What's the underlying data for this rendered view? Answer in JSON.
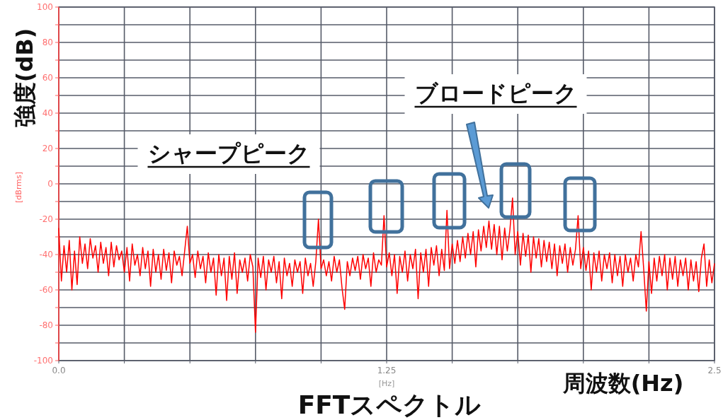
{
  "chart_data": {
    "type": "line",
    "title": "FFTスペクトル",
    "xlabel": "周波数(Hz)",
    "ylabel": "強度(dB)",
    "annotations": [
      "シャープピーク",
      "ブロードピーク",
      "[dBrms]",
      "[Hz]"
    ],
    "xlim": [
      0,
      2.5
    ],
    "ylim": [
      -100,
      100
    ],
    "xticks": [
      {
        "value": 0,
        "label": "0.0"
      },
      {
        "value": 0.25,
        "label": null
      },
      {
        "value": 0.5,
        "label": null
      },
      {
        "value": 0.75,
        "label": null
      },
      {
        "value": 1,
        "label": null
      },
      1.25,
      {
        "value": 1.5,
        "label": null
      },
      {
        "value": 1.75,
        "label": null
      },
      {
        "value": 2,
        "label": null
      },
      {
        "value": 2.25,
        "label": null
      },
      2.5
    ],
    "yticks": [
      -100,
      {
        "value": -90,
        "label": null
      },
      -80,
      {
        "value": -70,
        "label": null
      },
      -60,
      {
        "value": -50,
        "label": null
      },
      -40,
      {
        "value": -30,
        "label": null
      },
      -20,
      {
        "value": -10,
        "label": null
      },
      0,
      {
        "value": 10,
        "label": null
      },
      20,
      {
        "value": 30,
        "label": null
      },
      40,
      {
        "value": 50,
        "label": null
      },
      60,
      {
        "value": 70,
        "label": null
      },
      80,
      {
        "value": 90,
        "label": null
      },
      100
    ],
    "grid": true,
    "x": [
      0,
      0.01,
      0.02,
      0.03,
      0.04,
      0.05,
      0.06,
      0.07,
      0.08,
      0.09,
      0.1,
      0.11,
      0.12,
      0.13,
      0.14,
      0.15,
      0.16,
      0.17,
      0.18,
      0.19,
      0.2,
      0.21,
      0.22,
      0.23,
      0.24,
      0.25,
      0.26,
      0.27,
      0.28,
      0.29,
      0.3,
      0.31,
      0.32,
      0.33,
      0.34,
      0.35,
      0.36,
      0.37,
      0.38,
      0.39,
      0.4,
      0.41,
      0.42,
      0.43,
      0.44,
      0.45,
      0.46,
      0.47,
      0.48,
      0.49,
      0.5,
      0.51,
      0.52,
      0.53,
      0.54,
      0.55,
      0.56,
      0.57,
      0.58,
      0.59,
      0.6,
      0.61,
      0.62,
      0.63,
      0.64,
      0.65,
      0.66,
      0.67,
      0.68,
      0.69,
      0.7,
      0.71,
      0.72,
      0.73,
      0.74,
      0.75,
      0.76,
      0.77,
      0.78,
      0.79,
      0.8,
      0.81,
      0.82,
      0.83,
      0.84,
      0.85,
      0.86,
      0.87,
      0.88,
      0.89,
      0.9,
      0.91,
      0.92,
      0.93,
      0.94,
      0.95,
      0.96,
      0.97,
      0.98,
      0.99,
      1,
      1.01,
      1.02,
      1.03,
      1.04,
      1.05,
      1.06,
      1.07,
      1.08,
      1.09,
      1.1,
      1.11,
      1.12,
      1.13,
      1.14,
      1.15,
      1.16,
      1.17,
      1.18,
      1.19,
      1.2,
      1.21,
      1.22,
      1.23,
      1.24,
      1.25,
      1.26,
      1.27,
      1.28,
      1.29,
      1.3,
      1.31,
      1.32,
      1.33,
      1.34,
      1.35,
      1.36,
      1.37,
      1.38,
      1.39,
      1.4,
      1.41,
      1.42,
      1.43,
      1.44,
      1.45,
      1.46,
      1.47,
      1.48,
      1.49,
      1.5,
      1.51,
      1.52,
      1.53,
      1.54,
      1.55,
      1.56,
      1.57,
      1.58,
      1.59,
      1.6,
      1.61,
      1.62,
      1.63,
      1.64,
      1.65,
      1.66,
      1.67,
      1.68,
      1.69,
      1.7,
      1.71,
      1.72,
      1.73,
      1.74,
      1.75,
      1.76,
      1.77,
      1.78,
      1.79,
      1.8,
      1.81,
      1.82,
      1.83,
      1.84,
      1.85,
      1.86,
      1.87,
      1.88,
      1.89,
      1.9,
      1.91,
      1.92,
      1.93,
      1.94,
      1.95,
      1.96,
      1.97,
      1.98,
      1.99,
      2,
      2.01,
      2.02,
      2.03,
      2.04,
      2.05,
      2.06,
      2.07,
      2.08,
      2.09,
      2.1,
      2.11,
      2.12,
      2.13,
      2.14,
      2.15,
      2.16,
      2.17,
      2.18,
      2.19,
      2.2,
      2.21,
      2.22,
      2.23,
      2.24,
      2.25,
      2.26,
      2.27,
      2.28,
      2.29,
      2.3,
      2.31,
      2.32,
      2.33,
      2.34,
      2.35,
      2.36,
      2.37,
      2.38,
      2.39,
      2.4,
      2.41,
      2.42,
      2.43,
      2.44,
      2.45,
      2.46,
      2.47,
      2.48,
      2.49,
      2.5
    ],
    "series": [
      {
        "color": "#ff0000",
        "values": [
          -25,
          -55,
          -35,
          -50,
          -32,
          -60,
          -38,
          -57,
          -30,
          -45,
          -34,
          -48,
          -31,
          -42,
          -35,
          -50,
          -33,
          -45,
          -36,
          -52,
          -33,
          -47,
          -35,
          -43,
          -38,
          -50,
          -36,
          -55,
          -34,
          -46,
          -40,
          -52,
          -36,
          -48,
          -38,
          -58,
          -37,
          -50,
          -40,
          -54,
          -37,
          -49,
          -39,
          -56,
          -38,
          -46,
          -41,
          -52,
          -38,
          -24,
          -45,
          -40,
          -53,
          -38,
          -48,
          -41,
          -56,
          -39,
          -50,
          -42,
          -63,
          -40,
          -52,
          -42,
          -66,
          -41,
          -54,
          -39,
          -62,
          -43,
          -50,
          -42,
          -55,
          -40,
          -47,
          -84,
          -42,
          -53,
          -41,
          -60,
          -43,
          -50,
          -41,
          -56,
          -44,
          -65,
          -42,
          -52,
          -45,
          -58,
          -43,
          -50,
          -44,
          -62,
          -42,
          -52,
          -45,
          -58,
          -44,
          -20,
          -48,
          -43,
          -52,
          -44,
          -55,
          -41,
          -50,
          -43,
          -59,
          -71,
          -44,
          -52,
          -42,
          -49,
          -41,
          -54,
          -40,
          -48,
          -42,
          -58,
          -39,
          -50,
          -43,
          -46,
          -18,
          -47,
          -39,
          -52,
          -40,
          -62,
          -41,
          -50,
          -38,
          -55,
          -40,
          -48,
          -37,
          -65,
          -39,
          -50,
          -37,
          -58,
          -36,
          -46,
          -35,
          -52,
          -37,
          -49,
          -15,
          -48,
          -34,
          -45,
          -32,
          -44,
          -30,
          -42,
          -28,
          -40,
          -27,
          -47,
          -26,
          -38,
          -24,
          -36,
          -21,
          -37,
          -23,
          -40,
          -24,
          -43,
          -25,
          -38,
          -26,
          -8,
          -40,
          -27,
          -46,
          -28,
          -41,
          -29,
          -50,
          -30,
          -42,
          -31,
          -47,
          -32,
          -44,
          -33,
          -48,
          -34,
          -52,
          -35,
          -45,
          -34,
          -50,
          -36,
          -46,
          -37,
          -18,
          -48,
          -36,
          -49,
          -38,
          -60,
          -39,
          -50,
          -38,
          -55,
          -40,
          -48,
          -39,
          -56,
          -40,
          -52,
          -41,
          -58,
          -40,
          -50,
          -42,
          -55,
          -40,
          -47,
          -27,
          -48,
          -72,
          -44,
          -62,
          -42,
          -55,
          -41,
          -52,
          -40,
          -60,
          -42,
          -54,
          -41,
          -58,
          -43,
          -52,
          -42,
          -60,
          -43,
          -55,
          -44,
          -61,
          -42,
          -34,
          -58,
          -43,
          -56,
          -45
        ]
      }
    ]
  }
}
